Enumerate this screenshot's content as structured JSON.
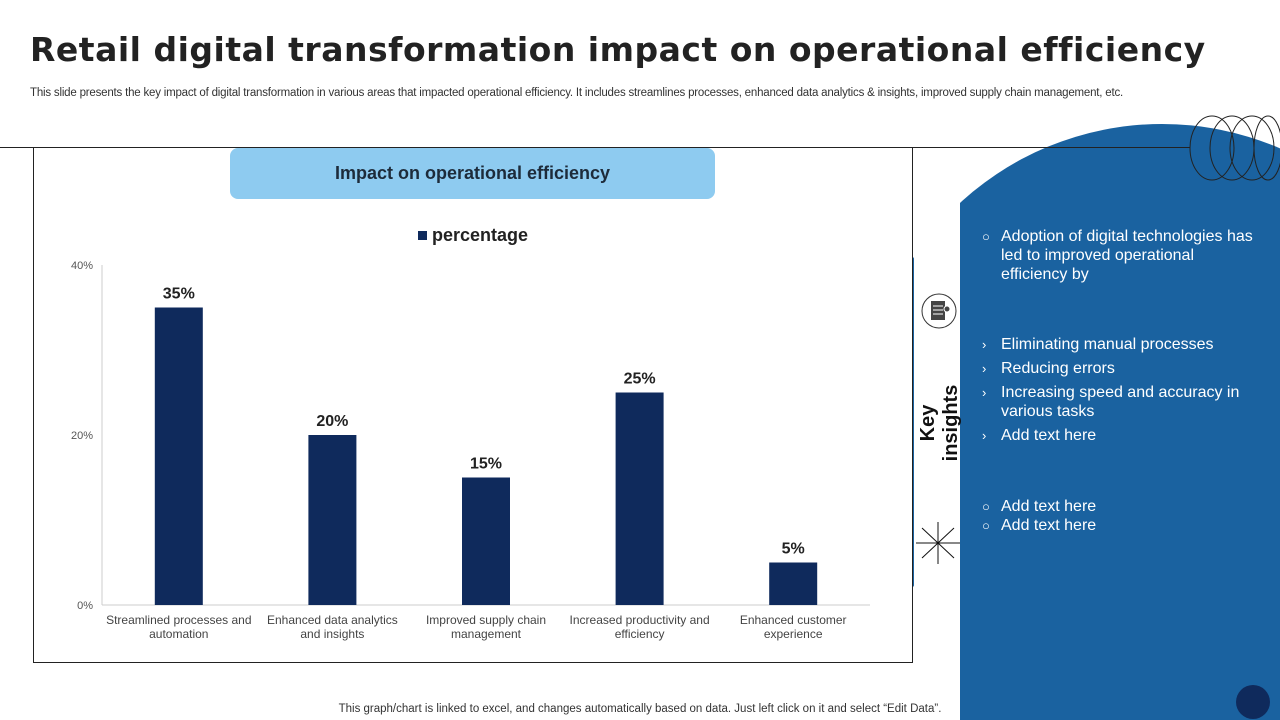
{
  "title": "Retail digital transformation impact on operational efficiency",
  "subtitle": "This slide presents the key impact of digital transformation in various areas that impacted operational efficiency. It includes streamlines processes, enhanced data analytics & insights, improved supply chain management, etc.",
  "chart_header": "Impact on operational efficiency",
  "footer": "This graph/chart is linked to excel,  and changes automatically based on data. Just left click on it and select “Edit Data”.",
  "colors": {
    "bar": "#0f2a5c",
    "panel": "#1a62a0",
    "header": "#8ecbf0"
  },
  "chart_data": {
    "type": "bar",
    "title": "",
    "legend": "top",
    "categories": [
      "Streamlined processes and automation",
      "Enhanced data analytics and insights",
      "Improved supply chain management",
      "Increased productivity and efficiency",
      "Enhanced customer experience"
    ],
    "series": [
      {
        "name": "percentage",
        "values": [
          35,
          20,
          15,
          25,
          5
        ]
      }
    ],
    "data_labels": [
      "35%",
      "20%",
      "15%",
      "25%",
      "5%"
    ],
    "yticks": [
      "0%",
      "20%",
      "40%"
    ],
    "ylim": [
      0,
      40
    ],
    "grid": false
  },
  "key_insights": {
    "label": "Key insights",
    "icon": "report-icon",
    "intro": "Adoption of digital technologies has led to improved operational efficiency by",
    "points": [
      "Eliminating manual processes",
      "Reducing errors",
      "Increasing speed and accuracy in various tasks",
      "Add text here"
    ],
    "extra": [
      "Add text here",
      "Add text here"
    ]
  }
}
